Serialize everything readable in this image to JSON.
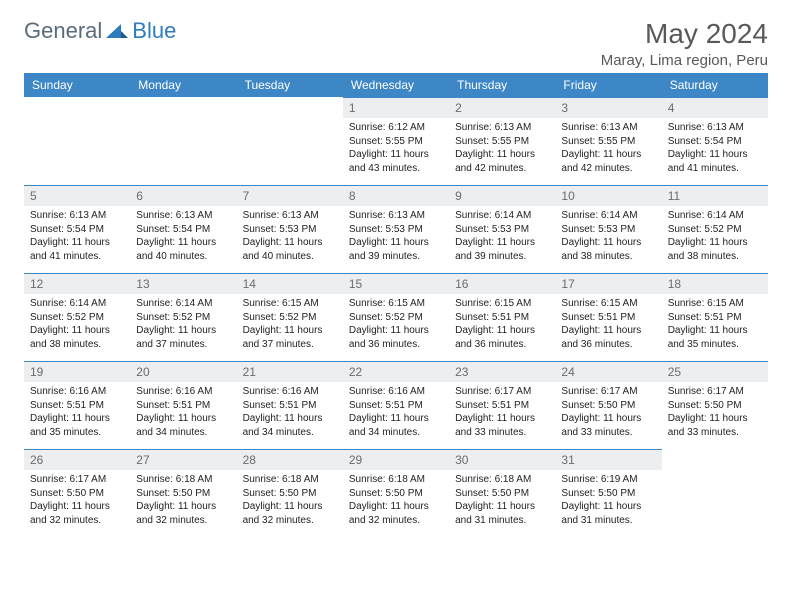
{
  "logo": {
    "part1": "General",
    "part2": "Blue"
  },
  "title": "May 2024",
  "subtitle": "Maray, Lima region, Peru",
  "colors": {
    "header_bg": "#3d87c7",
    "header_fg": "#ffffff",
    "daynum_bg": "#eceef0",
    "daynum_fg": "#6a6c6e",
    "text": "#232323",
    "rule": "#3d87c7"
  },
  "weekdays": [
    "Sunday",
    "Monday",
    "Tuesday",
    "Wednesday",
    "Thursday",
    "Friday",
    "Saturday"
  ],
  "weeks": [
    [
      null,
      null,
      null,
      {
        "n": "1",
        "sr": "6:12 AM",
        "ss": "5:55 PM",
        "dl": "11 hours and 43 minutes."
      },
      {
        "n": "2",
        "sr": "6:13 AM",
        "ss": "5:55 PM",
        "dl": "11 hours and 42 minutes."
      },
      {
        "n": "3",
        "sr": "6:13 AM",
        "ss": "5:55 PM",
        "dl": "11 hours and 42 minutes."
      },
      {
        "n": "4",
        "sr": "6:13 AM",
        "ss": "5:54 PM",
        "dl": "11 hours and 41 minutes."
      }
    ],
    [
      {
        "n": "5",
        "sr": "6:13 AM",
        "ss": "5:54 PM",
        "dl": "11 hours and 41 minutes."
      },
      {
        "n": "6",
        "sr": "6:13 AM",
        "ss": "5:54 PM",
        "dl": "11 hours and 40 minutes."
      },
      {
        "n": "7",
        "sr": "6:13 AM",
        "ss": "5:53 PM",
        "dl": "11 hours and 40 minutes."
      },
      {
        "n": "8",
        "sr": "6:13 AM",
        "ss": "5:53 PM",
        "dl": "11 hours and 39 minutes."
      },
      {
        "n": "9",
        "sr": "6:14 AM",
        "ss": "5:53 PM",
        "dl": "11 hours and 39 minutes."
      },
      {
        "n": "10",
        "sr": "6:14 AM",
        "ss": "5:53 PM",
        "dl": "11 hours and 38 minutes."
      },
      {
        "n": "11",
        "sr": "6:14 AM",
        "ss": "5:52 PM",
        "dl": "11 hours and 38 minutes."
      }
    ],
    [
      {
        "n": "12",
        "sr": "6:14 AM",
        "ss": "5:52 PM",
        "dl": "11 hours and 38 minutes."
      },
      {
        "n": "13",
        "sr": "6:14 AM",
        "ss": "5:52 PM",
        "dl": "11 hours and 37 minutes."
      },
      {
        "n": "14",
        "sr": "6:15 AM",
        "ss": "5:52 PM",
        "dl": "11 hours and 37 minutes."
      },
      {
        "n": "15",
        "sr": "6:15 AM",
        "ss": "5:52 PM",
        "dl": "11 hours and 36 minutes."
      },
      {
        "n": "16",
        "sr": "6:15 AM",
        "ss": "5:51 PM",
        "dl": "11 hours and 36 minutes."
      },
      {
        "n": "17",
        "sr": "6:15 AM",
        "ss": "5:51 PM",
        "dl": "11 hours and 36 minutes."
      },
      {
        "n": "18",
        "sr": "6:15 AM",
        "ss": "5:51 PM",
        "dl": "11 hours and 35 minutes."
      }
    ],
    [
      {
        "n": "19",
        "sr": "6:16 AM",
        "ss": "5:51 PM",
        "dl": "11 hours and 35 minutes."
      },
      {
        "n": "20",
        "sr": "6:16 AM",
        "ss": "5:51 PM",
        "dl": "11 hours and 34 minutes."
      },
      {
        "n": "21",
        "sr": "6:16 AM",
        "ss": "5:51 PM",
        "dl": "11 hours and 34 minutes."
      },
      {
        "n": "22",
        "sr": "6:16 AM",
        "ss": "5:51 PM",
        "dl": "11 hours and 34 minutes."
      },
      {
        "n": "23",
        "sr": "6:17 AM",
        "ss": "5:51 PM",
        "dl": "11 hours and 33 minutes."
      },
      {
        "n": "24",
        "sr": "6:17 AM",
        "ss": "5:50 PM",
        "dl": "11 hours and 33 minutes."
      },
      {
        "n": "25",
        "sr": "6:17 AM",
        "ss": "5:50 PM",
        "dl": "11 hours and 33 minutes."
      }
    ],
    [
      {
        "n": "26",
        "sr": "6:17 AM",
        "ss": "5:50 PM",
        "dl": "11 hours and 32 minutes."
      },
      {
        "n": "27",
        "sr": "6:18 AM",
        "ss": "5:50 PM",
        "dl": "11 hours and 32 minutes."
      },
      {
        "n": "28",
        "sr": "6:18 AM",
        "ss": "5:50 PM",
        "dl": "11 hours and 32 minutes."
      },
      {
        "n": "29",
        "sr": "6:18 AM",
        "ss": "5:50 PM",
        "dl": "11 hours and 32 minutes."
      },
      {
        "n": "30",
        "sr": "6:18 AM",
        "ss": "5:50 PM",
        "dl": "11 hours and 31 minutes."
      },
      {
        "n": "31",
        "sr": "6:19 AM",
        "ss": "5:50 PM",
        "dl": "11 hours and 31 minutes."
      },
      null
    ]
  ],
  "labels": {
    "sunrise": "Sunrise: ",
    "sunset": "Sunset: ",
    "daylight": "Daylight: "
  }
}
